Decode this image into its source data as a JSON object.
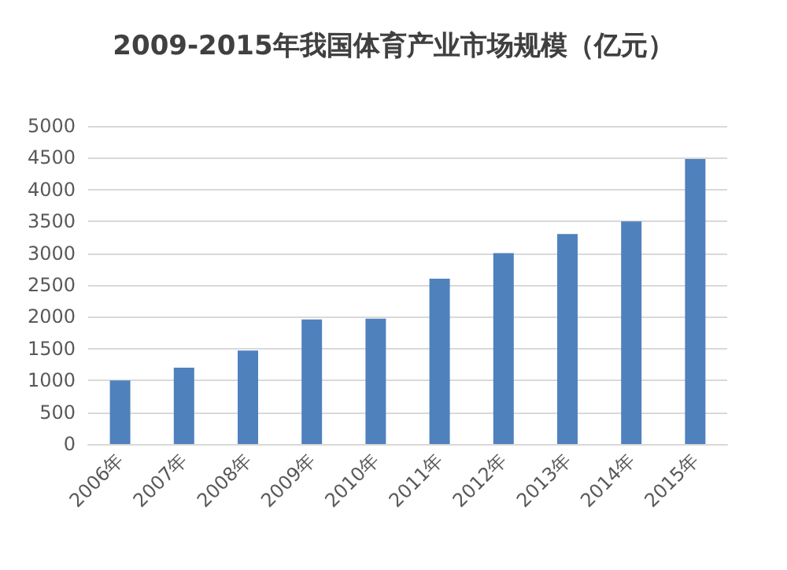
{
  "chart_data": {
    "type": "bar",
    "title": "2009-2015年我国体育产业市场规模（亿元）",
    "categories": [
      "2006年",
      "2007年",
      "2008年",
      "2009年",
      "2010年",
      "2011年",
      "2012年",
      "2013年",
      "2014年",
      "2015年"
    ],
    "values": [
      1000,
      1200,
      1470,
      1960,
      1970,
      2600,
      3000,
      3300,
      3500,
      4480
    ],
    "color": "#4f81bd",
    "ylim": [
      0,
      5000
    ],
    "yticks": [
      0,
      500,
      1000,
      1500,
      2000,
      2500,
      3000,
      3500,
      4000,
      4500,
      5000
    ],
    "grid": "y"
  }
}
